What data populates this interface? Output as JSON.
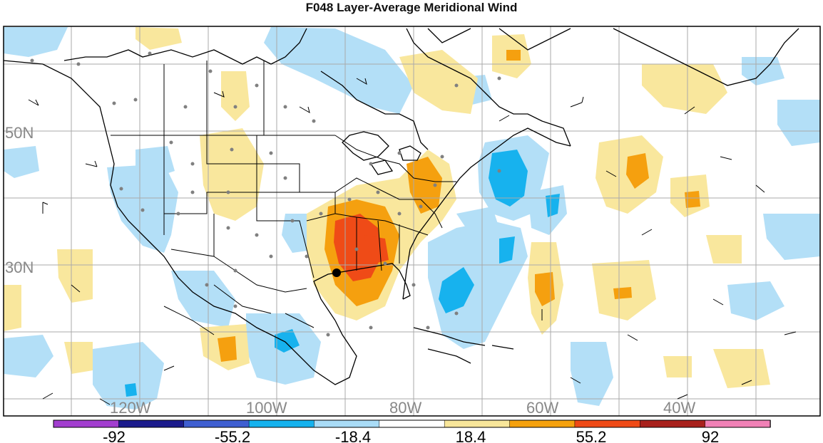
{
  "title": "F048 Layer-Average Meridional Wind",
  "lat_labels": [
    "50N",
    "30N"
  ],
  "lon_labels": [
    "120W",
    "100W",
    "80W",
    "60W",
    "40W"
  ],
  "colorbar": {
    "labels": [
      "-92",
      "-55.2",
      "-18.4",
      "18.4",
      "55.2",
      "92"
    ],
    "colors": [
      "#a23ecf",
      "#1b1b8c",
      "#3f5fd1",
      "#15b2ee",
      "#a9dcf7",
      "#ffffff",
      "#f8e69a",
      "#f5a10e",
      "#ef4a16",
      "#a8211c",
      "#f081b6"
    ]
  },
  "field_colors": {
    "light_blue": "#b3dff7",
    "mid_blue": "#17b2ee",
    "light_yellow": "#f9e79d",
    "orange": "#f5a00f",
    "red_orange": "#ef4b17"
  },
  "marker": {
    "label": "tropical cyclone position"
  }
}
